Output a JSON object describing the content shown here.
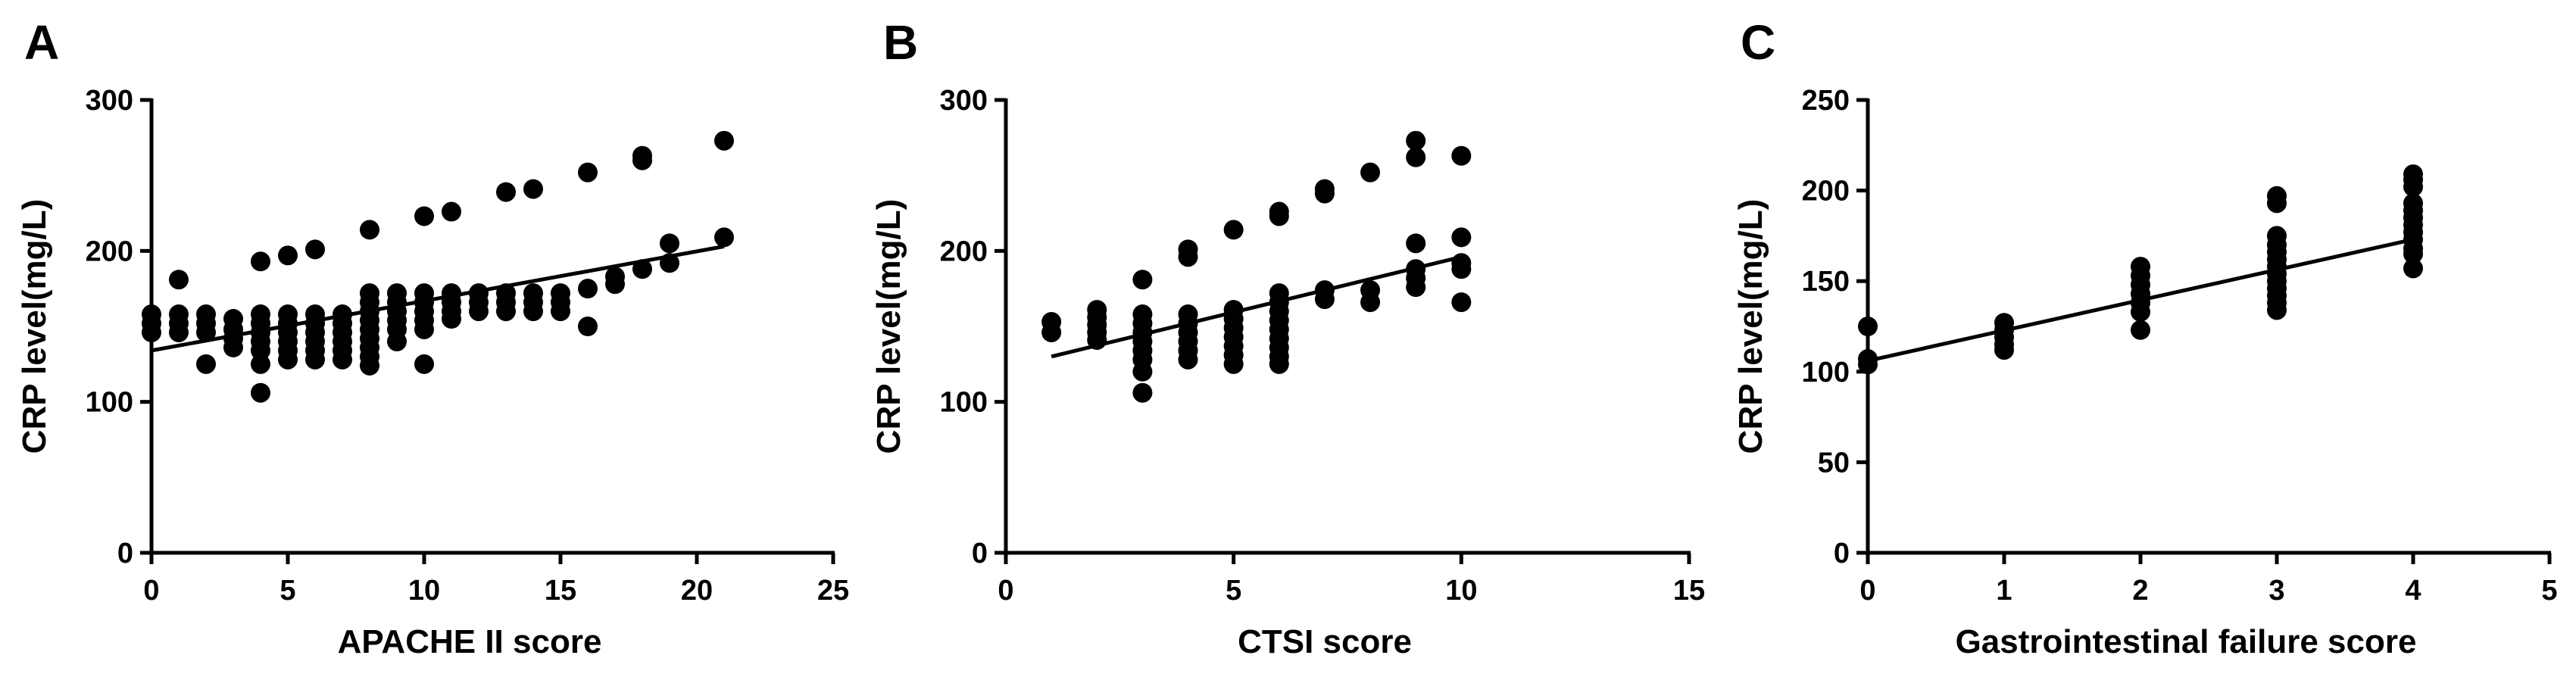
{
  "chart_data": [
    {
      "panel": "A",
      "type": "scatter",
      "title": "",
      "xlabel": "APACHE II score",
      "ylabel": "CRP level(mg/L)",
      "xlim": [
        0,
        25
      ],
      "ylim": [
        0,
        300
      ],
      "xticks": [
        0,
        5,
        10,
        15,
        20,
        25
      ],
      "yticks": [
        0,
        100,
        200,
        300
      ],
      "xtick_labels": [
        "0",
        "5",
        "10",
        "15",
        "20",
        "25"
      ],
      "ytick_labels": [
        "0",
        "100",
        "200",
        "300"
      ],
      "grid": false,
      "legend": "none",
      "fit_line": {
        "x": [
          0,
          21
        ],
        "y": [
          134,
          203
        ]
      },
      "points": [
        [
          0,
          158
        ],
        [
          0,
          152
        ],
        [
          0,
          146
        ],
        [
          1,
          181
        ],
        [
          1,
          158
        ],
        [
          1,
          152
        ],
        [
          1,
          146
        ],
        [
          2,
          158
        ],
        [
          2,
          152
        ],
        [
          2,
          146
        ],
        [
          2,
          125
        ],
        [
          3,
          155
        ],
        [
          3,
          148
        ],
        [
          3,
          142
        ],
        [
          3,
          136
        ],
        [
          4,
          193
        ],
        [
          4,
          158
        ],
        [
          4,
          152
        ],
        [
          4,
          146
        ],
        [
          4,
          140
        ],
        [
          4,
          134
        ],
        [
          4,
          125
        ],
        [
          4,
          106
        ],
        [
          5,
          197
        ],
        [
          5,
          158
        ],
        [
          5,
          152
        ],
        [
          5,
          146
        ],
        [
          5,
          140
        ],
        [
          5,
          134
        ],
        [
          5,
          128
        ],
        [
          6,
          201
        ],
        [
          6,
          158
        ],
        [
          6,
          152
        ],
        [
          6,
          146
        ],
        [
          6,
          140
        ],
        [
          6,
          134
        ],
        [
          6,
          128
        ],
        [
          7,
          158
        ],
        [
          7,
          152
        ],
        [
          7,
          146
        ],
        [
          7,
          140
        ],
        [
          7,
          134
        ],
        [
          7,
          128
        ],
        [
          8,
          214
        ],
        [
          8,
          172
        ],
        [
          8,
          166
        ],
        [
          8,
          160
        ],
        [
          8,
          154
        ],
        [
          8,
          148
        ],
        [
          8,
          142
        ],
        [
          8,
          136
        ],
        [
          8,
          130
        ],
        [
          8,
          124
        ],
        [
          9,
          172
        ],
        [
          9,
          166
        ],
        [
          9,
          160
        ],
        [
          9,
          154
        ],
        [
          9,
          148
        ],
        [
          9,
          140
        ],
        [
          10,
          223
        ],
        [
          10,
          172
        ],
        [
          10,
          166
        ],
        [
          10,
          160
        ],
        [
          10,
          154
        ],
        [
          10,
          148
        ],
        [
          10,
          125
        ],
        [
          11,
          226
        ],
        [
          11,
          172
        ],
        [
          11,
          166
        ],
        [
          11,
          160
        ],
        [
          11,
          155
        ],
        [
          12,
          172
        ],
        [
          12,
          166
        ],
        [
          12,
          160
        ],
        [
          13,
          239
        ],
        [
          13,
          172
        ],
        [
          13,
          166
        ],
        [
          13,
          160
        ],
        [
          14,
          241
        ],
        [
          14,
          172
        ],
        [
          14,
          166
        ],
        [
          14,
          160
        ],
        [
          15,
          172
        ],
        [
          15,
          166
        ],
        [
          15,
          160
        ],
        [
          16,
          252
        ],
        [
          16,
          175
        ],
        [
          16,
          150
        ],
        [
          17,
          183
        ],
        [
          17,
          178
        ],
        [
          18,
          263
        ],
        [
          18,
          260
        ],
        [
          18,
          188
        ],
        [
          19,
          205
        ],
        [
          19,
          192
        ],
        [
          21,
          273
        ],
        [
          21,
          209
        ]
      ]
    },
    {
      "panel": "B",
      "type": "scatter",
      "title": "",
      "xlabel": "CTSI score",
      "ylabel": "CRP level(mg/L)",
      "xlim": [
        0,
        15
      ],
      "ylim": [
        0,
        300
      ],
      "xticks": [
        0,
        5,
        10,
        15
      ],
      "yticks": [
        0,
        100,
        200,
        300
      ],
      "xtick_labels": [
        "0",
        "5",
        "10",
        "15"
      ],
      "ytick_labels": [
        "0",
        "100",
        "200",
        "300"
      ],
      "grid": false,
      "legend": "none",
      "fit_line": {
        "x": [
          1,
          10
        ],
        "y": [
          130,
          196
        ]
      },
      "points": [
        [
          1,
          153
        ],
        [
          1,
          146
        ],
        [
          2,
          161
        ],
        [
          2,
          156
        ],
        [
          2,
          151
        ],
        [
          2,
          146
        ],
        [
          2,
          141
        ],
        [
          3,
          181
        ],
        [
          3,
          158
        ],
        [
          3,
          152
        ],
        [
          3,
          146
        ],
        [
          3,
          140
        ],
        [
          3,
          134
        ],
        [
          3,
          128
        ],
        [
          3,
          120
        ],
        [
          3,
          106
        ],
        [
          4,
          201
        ],
        [
          4,
          196
        ],
        [
          4,
          158
        ],
        [
          4,
          152
        ],
        [
          4,
          146
        ],
        [
          4,
          140
        ],
        [
          4,
          134
        ],
        [
          4,
          128
        ],
        [
          5,
          214
        ],
        [
          5,
          161
        ],
        [
          5,
          155
        ],
        [
          5,
          149
        ],
        [
          5,
          143
        ],
        [
          5,
          137
        ],
        [
          5,
          131
        ],
        [
          5,
          125
        ],
        [
          6,
          226
        ],
        [
          6,
          223
        ],
        [
          6,
          172
        ],
        [
          6,
          166
        ],
        [
          6,
          160
        ],
        [
          6,
          154
        ],
        [
          6,
          148
        ],
        [
          6,
          142
        ],
        [
          6,
          136
        ],
        [
          6,
          130
        ],
        [
          6,
          125
        ],
        [
          7,
          241
        ],
        [
          7,
          238
        ],
        [
          7,
          174
        ],
        [
          7,
          168
        ],
        [
          8,
          252
        ],
        [
          8,
          174
        ],
        [
          8,
          166
        ],
        [
          9,
          273
        ],
        [
          9,
          262
        ],
        [
          9,
          205
        ],
        [
          9,
          188
        ],
        [
          9,
          182
        ],
        [
          9,
          176
        ],
        [
          10,
          263
        ],
        [
          10,
          209
        ],
        [
          10,
          192
        ],
        [
          10,
          188
        ],
        [
          10,
          166
        ]
      ]
    },
    {
      "panel": "C",
      "type": "scatter",
      "title": "",
      "xlabel": "Gastrointestinal failure score",
      "ylabel": "CRP level(mg/L)",
      "xlim": [
        0,
        5
      ],
      "ylim": [
        0,
        250
      ],
      "xticks": [
        0,
        1,
        2,
        3,
        4,
        5
      ],
      "yticks": [
        0,
        50,
        100,
        150,
        200,
        250
      ],
      "xtick_labels": [
        "0",
        "1",
        "2",
        "3",
        "4",
        "5"
      ],
      "ytick_labels": [
        "0",
        "50",
        "100",
        "150",
        "200",
        "250"
      ],
      "grid": false,
      "legend": "none",
      "fit_line": {
        "x": [
          0,
          4
        ],
        "y": [
          106,
          173
        ]
      },
      "points": [
        [
          0,
          125
        ],
        [
          0,
          107
        ],
        [
          0,
          104
        ],
        [
          1,
          127
        ],
        [
          1,
          123
        ],
        [
          1,
          119
        ],
        [
          1,
          115
        ],
        [
          1,
          112
        ],
        [
          2,
          158
        ],
        [
          2,
          153
        ],
        [
          2,
          148
        ],
        [
          2,
          143
        ],
        [
          2,
          138
        ],
        [
          2,
          133
        ],
        [
          2,
          123
        ],
        [
          3,
          197
        ],
        [
          3,
          193
        ],
        [
          3,
          175
        ],
        [
          3,
          170
        ],
        [
          3,
          166
        ],
        [
          3,
          162
        ],
        [
          3,
          158
        ],
        [
          3,
          154
        ],
        [
          3,
          150
        ],
        [
          3,
          146
        ],
        [
          3,
          142
        ],
        [
          3,
          138
        ],
        [
          3,
          134
        ],
        [
          4,
          209
        ],
        [
          4,
          206
        ],
        [
          4,
          202
        ],
        [
          4,
          193
        ],
        [
          4,
          189
        ],
        [
          4,
          185
        ],
        [
          4,
          181
        ],
        [
          4,
          177
        ],
        [
          4,
          173
        ],
        [
          4,
          168
        ],
        [
          4,
          165
        ],
        [
          4,
          157
        ]
      ]
    }
  ]
}
